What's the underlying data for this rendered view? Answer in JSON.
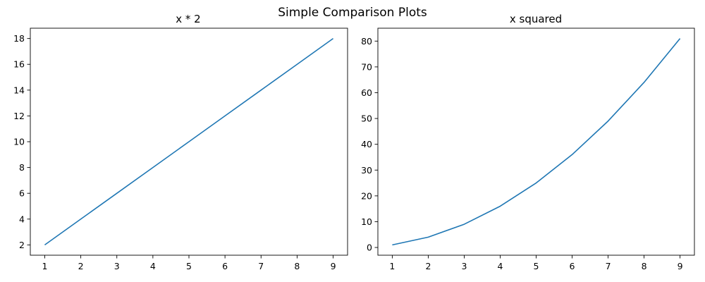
{
  "figure": {
    "suptitle": "Simple Comparison Plots",
    "line_color": "#1f77b4"
  },
  "chart_data": [
    {
      "type": "line",
      "title": "x * 2",
      "xlabel": "",
      "ylabel": "",
      "x": [
        1,
        2,
        3,
        4,
        5,
        6,
        7,
        8,
        9
      ],
      "series": [
        {
          "values": [
            2,
            4,
            6,
            8,
            10,
            12,
            14,
            16,
            18
          ]
        }
      ],
      "xlim": [
        0.6,
        9.4
      ],
      "ylim": [
        1.2,
        18.8
      ],
      "xticks": [
        1,
        2,
        3,
        4,
        5,
        6,
        7,
        8,
        9
      ],
      "yticks": [
        2,
        4,
        6,
        8,
        10,
        12,
        14,
        16,
        18
      ],
      "xtick_labels": [
        "1",
        "2",
        "3",
        "4",
        "5",
        "6",
        "7",
        "8",
        "9"
      ],
      "ytick_labels": [
        "2",
        "4",
        "6",
        "8",
        "10",
        "12",
        "14",
        "16",
        "18"
      ],
      "grid": false,
      "legend": "none"
    },
    {
      "type": "line",
      "title": "x squared",
      "xlabel": "",
      "ylabel": "",
      "x": [
        1,
        2,
        3,
        4,
        5,
        6,
        7,
        8,
        9
      ],
      "series": [
        {
          "values": [
            1,
            4,
            9,
            16,
            25,
            36,
            49,
            64,
            81
          ]
        }
      ],
      "xlim": [
        0.6,
        9.4
      ],
      "ylim": [
        -3,
        85
      ],
      "xticks": [
        1,
        2,
        3,
        4,
        5,
        6,
        7,
        8,
        9
      ],
      "yticks": [
        0,
        10,
        20,
        30,
        40,
        50,
        60,
        70,
        80
      ],
      "xtick_labels": [
        "1",
        "2",
        "3",
        "4",
        "5",
        "6",
        "7",
        "8",
        "9"
      ],
      "ytick_labels": [
        "0",
        "10",
        "20",
        "30",
        "40",
        "50",
        "60",
        "70",
        "80"
      ],
      "grid": false,
      "legend": "none"
    }
  ]
}
